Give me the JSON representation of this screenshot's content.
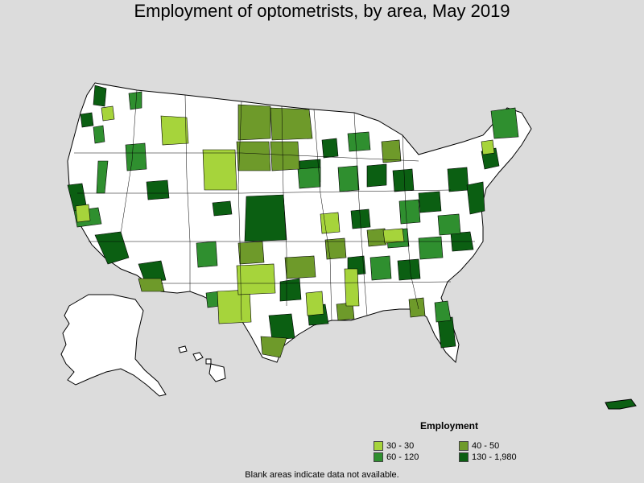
{
  "title": "Employment of optometrists, by area, May 2019",
  "legend": {
    "title": "Employment",
    "items": [
      {
        "label": "30 - 30",
        "color": "#a6d43b"
      },
      {
        "label": "40 - 50",
        "color": "#6e9a2a"
      },
      {
        "label": "60 - 120",
        "color": "#2f8f2f"
      },
      {
        "label": "130 - 1,980",
        "color": "#0b5f12"
      }
    ]
  },
  "footnote": "Blank areas indicate data not available.",
  "colors": {
    "background": "#dcdcdc",
    "blank_area": "#ffffff",
    "border": "#000000"
  }
}
